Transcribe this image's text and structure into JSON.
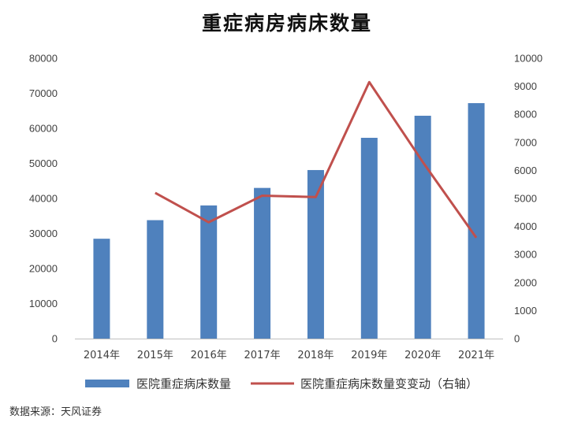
{
  "chart_data": {
    "type": "bar",
    "title": "重症病房病床数量",
    "categories": [
      "2014年",
      "2015年",
      "2016年",
      "2017年",
      "2018年",
      "2019年",
      "2020年",
      "2021年"
    ],
    "series": [
      {
        "name": "医院重症病床数量",
        "type": "bar",
        "axis": "left",
        "color": "#4F81BD",
        "values": [
          28500,
          33800,
          38000,
          43000,
          48100,
          57300,
          63600,
          67200
        ]
      },
      {
        "name": "医院重症病床数量变变动（右轴）",
        "type": "line",
        "axis": "right",
        "color": "#C0504D",
        "values": [
          null,
          5200,
          4150,
          5100,
          5050,
          9150,
          6300,
          3600
        ]
      }
    ],
    "y_left": {
      "min": 0,
      "max": 80000,
      "step": 10000,
      "ticks": [
        "0",
        "10000",
        "20000",
        "30000",
        "40000",
        "50000",
        "60000",
        "70000",
        "80000"
      ]
    },
    "y_right": {
      "min": 0,
      "max": 10000,
      "step": 1000,
      "ticks": [
        "0",
        "1000",
        "2000",
        "3000",
        "4000",
        "5000",
        "6000",
        "7000",
        "8000",
        "9000",
        "10000"
      ]
    },
    "grid": false,
    "legend_position": "bottom"
  },
  "source": "数据来源：天风证券"
}
